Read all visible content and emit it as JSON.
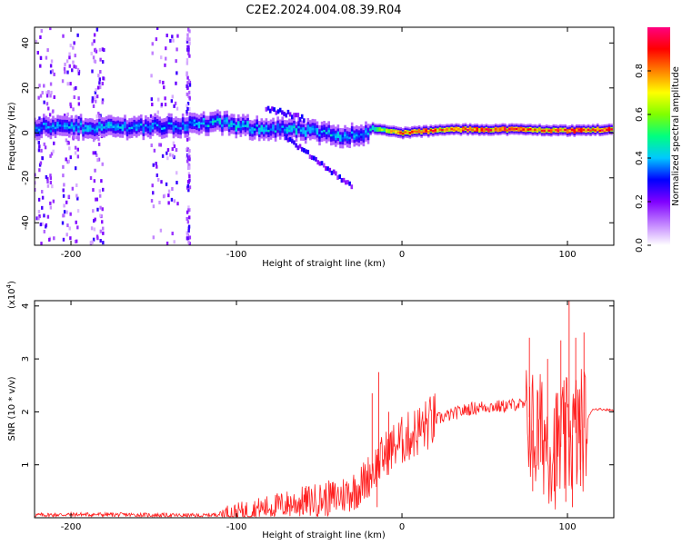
{
  "title": "C2E2.2024.004.08.39.R04",
  "chart_data": [
    {
      "type": "heatmap",
      "xlabel": "Height of straight line (km)",
      "ylabel": "Frequency (Hz)",
      "xlim": [
        -222,
        128
      ],
      "ylim": [
        -50,
        47
      ],
      "xticks": [
        -200,
        -100,
        0,
        100
      ],
      "yticks": [
        -40,
        -20,
        0,
        20,
        40
      ],
      "colorbar": {
        "label": "Normalized spectral amplitude",
        "range": [
          0,
          1
        ],
        "ticks": [
          0.0,
          0.2,
          0.4,
          0.6,
          0.8
        ],
        "colormap": [
          "#ffffff",
          "#c080ff",
          "#8000ff",
          "#0000ff",
          "#00c8ff",
          "#00ff80",
          "#80ff00",
          "#ffff00",
          "#ff8000",
          "#ff0000",
          "#ff0080"
        ]
      },
      "ridge": [
        {
          "x": -222,
          "freq": 2.5,
          "amp": 0.35
        },
        {
          "x": -180,
          "freq": 2.5,
          "amp": 0.38
        },
        {
          "x": -140,
          "freq": 3,
          "amp": 0.35
        },
        {
          "x": -110,
          "freq": 4.5,
          "amp": 0.4
        },
        {
          "x": -95,
          "freq": 2.5,
          "amp": 0.4
        },
        {
          "x": -80,
          "freq": 2,
          "amp": 0.38
        },
        {
          "x": -60,
          "freq": 1,
          "amp": 0.4
        },
        {
          "x": -40,
          "freq": -1,
          "amp": 0.38
        },
        {
          "x": -25,
          "freq": -1,
          "amp": 0.36
        },
        {
          "x": -18,
          "freq": 2,
          "amp": 0.42
        },
        {
          "x": -10,
          "freq": 1,
          "amp": 0.6
        },
        {
          "x": 0,
          "freq": 0,
          "amp": 0.78
        },
        {
          "x": 30,
          "freq": 1.5,
          "amp": 0.8
        },
        {
          "x": 70,
          "freq": 1.5,
          "amp": 0.82
        },
        {
          "x": 100,
          "freq": 1,
          "amp": 0.8
        },
        {
          "x": 128,
          "freq": 1.5,
          "amp": 0.85
        }
      ]
    },
    {
      "type": "line",
      "xlabel": "Height of straight line (km)",
      "ylabel": "SNR (10 * v/v)",
      "y_multiplier_label": "(x10",
      "y_multiplier_exponent": "4",
      "y_multiplier_close": ")",
      "xlim": [
        -222,
        128
      ],
      "ylim": [
        0,
        4.1
      ],
      "xticks": [
        -200,
        -100,
        0,
        100
      ],
      "yticks": [
        1,
        2,
        3,
        4
      ],
      "line_color": "#ff2020",
      "series": [
        {
          "x": [
            -222,
            -200,
            -180,
            -150,
            -120,
            -100,
            -80,
            -60,
            -40,
            -30,
            -25,
            -20,
            -15,
            -10,
            -5,
            0,
            10,
            20,
            30,
            40,
            50,
            60,
            70,
            75,
            78,
            80,
            85,
            90,
            95,
            100,
            105,
            110,
            115,
            120,
            128
          ],
          "y": [
            0.05,
            0.06,
            0.06,
            0.05,
            0.04,
            0.1,
            0.2,
            0.3,
            0.38,
            0.5,
            0.6,
            0.8,
            1.0,
            1.2,
            1.35,
            1.45,
            1.65,
            1.85,
            1.95,
            2.05,
            2.1,
            2.1,
            2.15,
            2.1,
            1.8,
            1.5,
            1.6,
            1.4,
            1.3,
            1.5,
            1.6,
            1.7,
            2.05,
            2.05,
            2.03
          ]
        }
      ],
      "spikes": [
        {
          "x": -18,
          "y": 2.35
        },
        {
          "x": -14,
          "y": 2.75
        },
        {
          "x": -15,
          "y": 0.2
        },
        {
          "x": -8,
          "y": 2.0
        },
        {
          "x": 77,
          "y": 3.4
        },
        {
          "x": 79,
          "y": 0.5
        },
        {
          "x": 88,
          "y": 3.0
        },
        {
          "x": 92,
          "y": 0.5
        },
        {
          "x": 96,
          "y": 3.35
        },
        {
          "x": 99,
          "y": 0.3
        },
        {
          "x": 101,
          "y": 4.1
        },
        {
          "x": 103,
          "y": 0.2
        },
        {
          "x": 105,
          "y": 3.4
        },
        {
          "x": 108,
          "y": 0.6
        },
        {
          "x": 110,
          "y": 3.5
        }
      ]
    }
  ]
}
